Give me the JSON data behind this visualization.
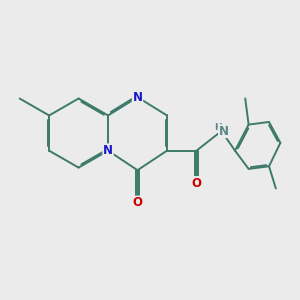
{
  "bg_color": "#ebebeb",
  "bond_color": "#3d7a6a",
  "atom_colors": {
    "N": "#1a1acc",
    "O": "#cc0000",
    "NH": "#5a8888"
  },
  "bond_lw": 1.4,
  "dbo": 0.055,
  "font_size": 8.5,
  "fig_size": [
    3.0,
    3.0
  ],
  "dpi": 100
}
